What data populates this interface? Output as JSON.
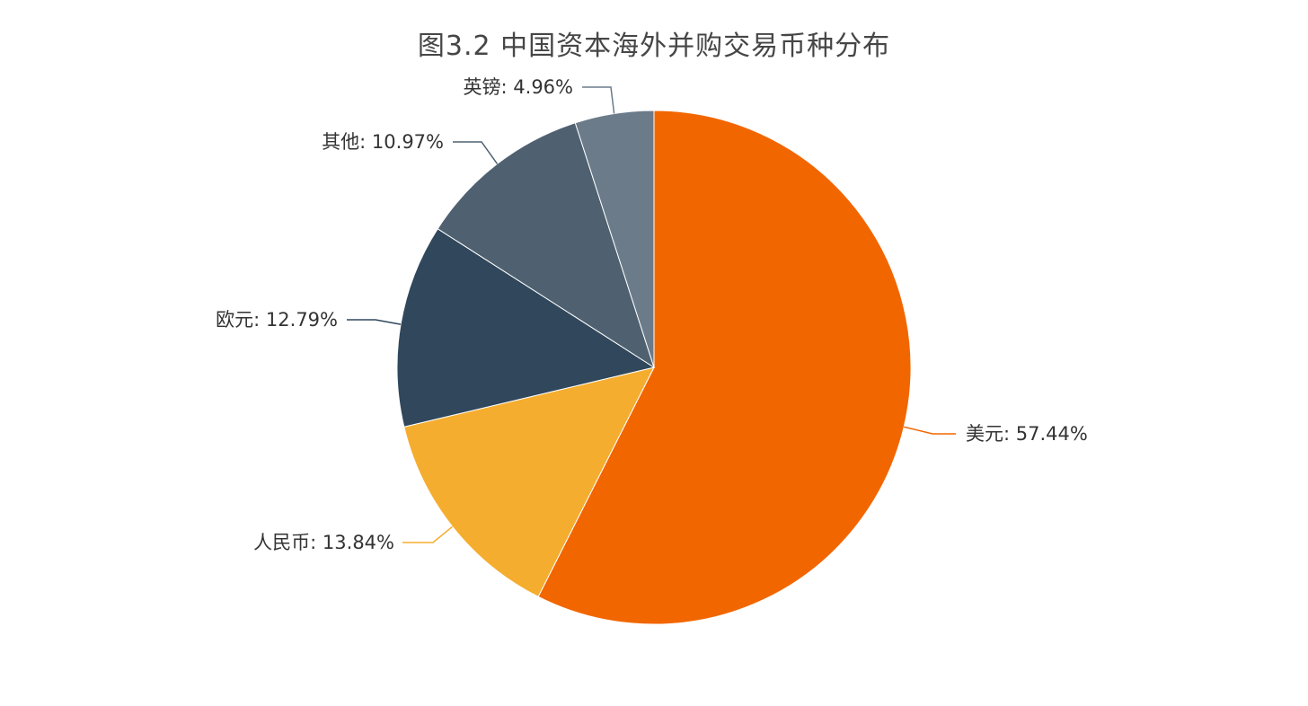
{
  "chart_data": {
    "type": "pie",
    "title": "图3.2  中国资本海外并购交易币种分布",
    "slices": [
      {
        "label": "美元",
        "value": 57.44,
        "display": "美元: 57.44%",
        "color": "#F26600"
      },
      {
        "label": "人民币",
        "value": 13.84,
        "display": "人民币: 13.84%",
        "color": "#F5AD2F"
      },
      {
        "label": "欧元",
        "value": 12.79,
        "display": "欧元: 12.79%",
        "color": "#30475C"
      },
      {
        "label": "其他",
        "value": 10.97,
        "display": "其他: 10.97%",
        "color": "#4F6170"
      },
      {
        "label": "英镑",
        "value": 4.96,
        "display": "英镑: 4.96%",
        "color": "#6B7B8A"
      }
    ],
    "unit": "%",
    "direction": "clockwise",
    "start_angle": "12 o'clock",
    "legend": "none"
  }
}
